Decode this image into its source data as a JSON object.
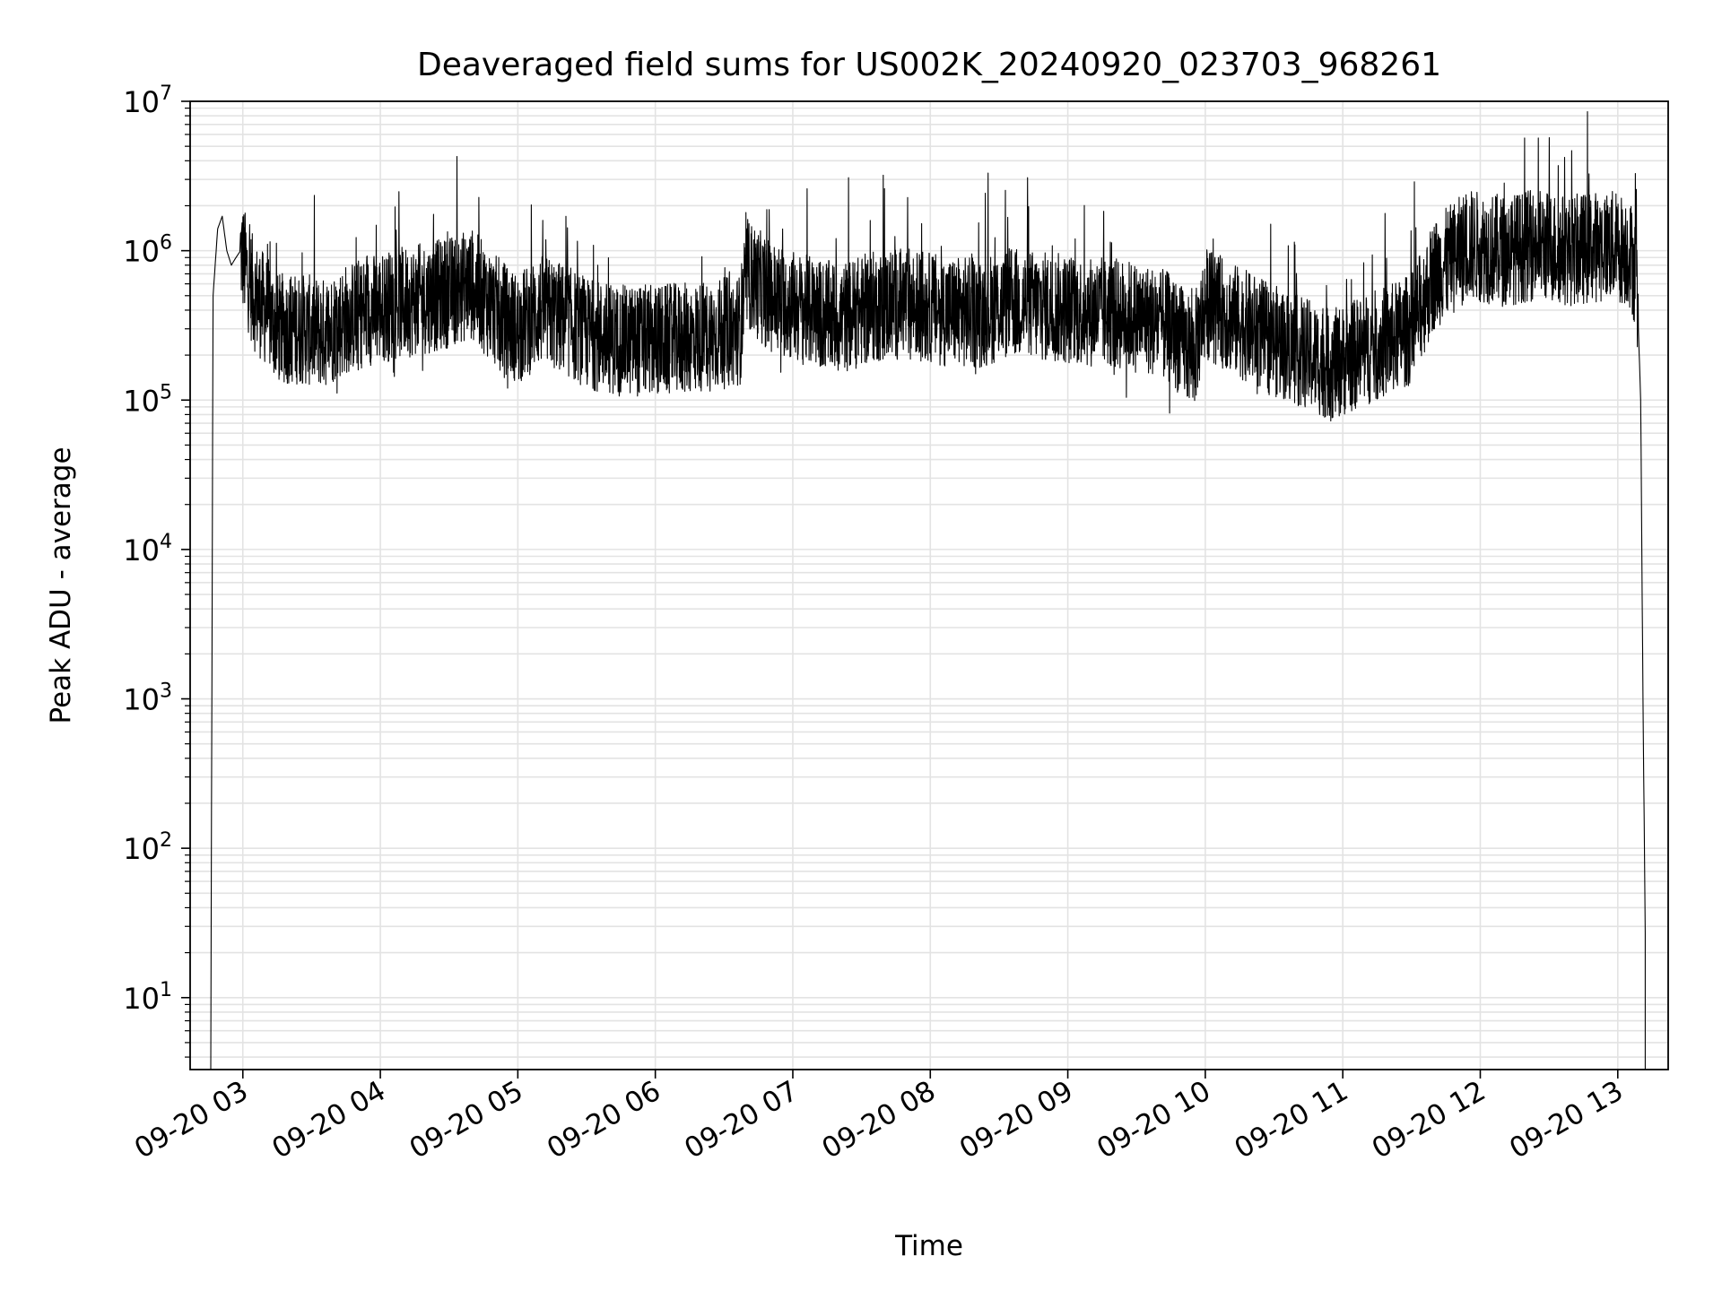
{
  "chart_data": {
    "type": "line",
    "title": "Deaveraged field sums for US002K_20240920_023703_968261",
    "xlabel": "Time",
    "ylabel": "Peak ADU - average",
    "yscale": "log",
    "ylim": [
      3.3,
      10000000
    ],
    "xlim": [
      "09-20 02:37",
      "09-20 13:22"
    ],
    "grid": true,
    "line_color": "#000000",
    "grid_color": "#e3e3e3",
    "x_ticks": [
      "09-20 03",
      "09-20 04",
      "09-20 05",
      "09-20 06",
      "09-20 07",
      "09-20 08",
      "09-20 09",
      "09-20 10",
      "09-20 11",
      "09-20 12",
      "09-20 13"
    ],
    "y_ticks": [
      {
        "base": "10",
        "exp": "1",
        "value": 10
      },
      {
        "base": "10",
        "exp": "2",
        "value": 100
      },
      {
        "base": "10",
        "exp": "3",
        "value": 1000
      },
      {
        "base": "10",
        "exp": "4",
        "value": 10000
      },
      {
        "base": "10",
        "exp": "5",
        "value": 100000
      },
      {
        "base": "10",
        "exp": "6",
        "value": 1000000
      },
      {
        "base": "10",
        "exp": "7",
        "value": 10000000
      }
    ],
    "series": [
      {
        "x": [
          "09-20 02:46",
          "09-20 02:47",
          "09-20 02:49",
          "09-20 02:51",
          "09-20 02:53",
          "09-20 02:55",
          "09-20 02:57",
          "09-20 02:59",
          "09-20 03:02",
          "09-20 03:05",
          "09-20 03:10",
          "09-20 03:15",
          "09-20 03:25",
          "09-20 03:35",
          "09-20 03:45",
          "09-20 03:55",
          "09-20 04:10",
          "09-20 04:25",
          "09-20 04:40",
          "09-20 04:50",
          "09-20 05:00",
          "09-20 05:10",
          "09-20 05:20",
          "09-20 05:30",
          "09-20 05:45",
          "09-20 06:00",
          "09-20 06:15",
          "09-20 06:30",
          "09-20 06:37",
          "09-20 06:40",
          "09-20 06:50",
          "09-20 07:05",
          "09-20 07:20",
          "09-20 07:35",
          "09-20 07:50",
          "09-20 08:05",
          "09-20 08:20",
          "09-20 08:35",
          "09-20 08:50",
          "09-20 09:05",
          "09-20 09:20",
          "09-20 09:35",
          "09-20 09:45",
          "09-20 09:55",
          "09-20 10:00",
          "09-20 10:15",
          "09-20 10:30",
          "09-20 10:45",
          "09-20 10:55",
          "09-20 11:05",
          "09-20 11:20",
          "09-20 11:30",
          "09-20 11:40",
          "09-20 11:55",
          "09-20 12:10",
          "09-20 12:25",
          "09-20 12:40",
          "09-20 12:55",
          "09-20 13:05",
          "09-20 13:08",
          "09-20 13:09",
          "09-20 13:10",
          "09-20 13:11",
          "09-20 13:12"
        ],
        "y": [
          3.3,
          500000,
          1400000,
          1700000,
          1000000,
          800000,
          900000,
          1000000,
          700000,
          500000,
          400000,
          300000,
          300000,
          280000,
          350000,
          400000,
          450000,
          500000,
          600000,
          400000,
          300000,
          400000,
          350000,
          280000,
          250000,
          250000,
          260000,
          280000,
          300000,
          700000,
          500000,
          400000,
          350000,
          420000,
          450000,
          400000,
          380000,
          450000,
          420000,
          400000,
          380000,
          350000,
          300000,
          200000,
          450000,
          330000,
          250000,
          200000,
          170000,
          200000,
          250000,
          300000,
          700000,
          1100000,
          1000000,
          1100000,
          1000000,
          1100000,
          1000000,
          700000,
          300000,
          100000,
          1000,
          27
        ]
      }
    ]
  }
}
